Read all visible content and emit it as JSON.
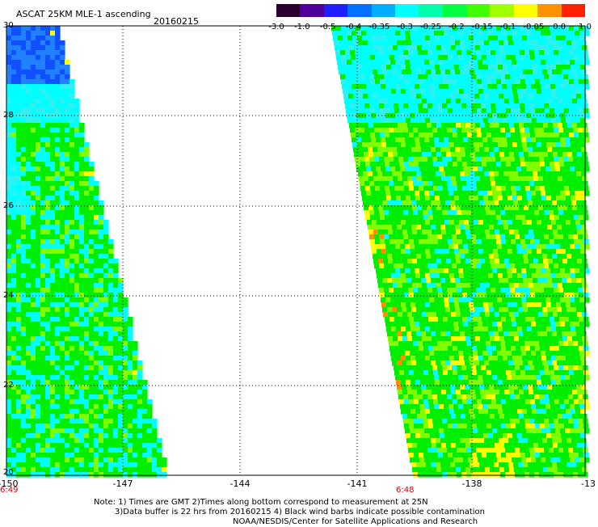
{
  "header": {
    "title": "ASCAT 25KM MLE-1 ascending",
    "date": "20160215"
  },
  "colorbar": {
    "labels": [
      "-3.0",
      "-1.0",
      "-0.5",
      "-0.4",
      "-0.35",
      "-0.3",
      "-0.25",
      "-0.2",
      "-0.15",
      "-0.1",
      "-0.05",
      "0.0",
      "1.0"
    ],
    "colors": [
      "#2a0030",
      "#50009a",
      "#2020ff",
      "#0070ff",
      "#00b0ff",
      "#00ffff",
      "#00ffaa",
      "#00ff40",
      "#40ff00",
      "#a0ff00",
      "#ffff00",
      "#ff9000",
      "#ff2000"
    ]
  },
  "axes": {
    "y_labels": [
      "30",
      "28",
      "26",
      "24",
      "22",
      "20"
    ],
    "x_labels": [
      "-150",
      "-147",
      "-144",
      "-141",
      "-138",
      "-13"
    ],
    "time_left": "6:49",
    "time_right": "6:48"
  },
  "note": {
    "line1": "Note: 1) Times are GMT 2)Times along bottom correspond to measurement at 25N",
    "line2": "3)Data buffer is 22 hrs from 20160215 4) Black wind barbs indicate possible contamination",
    "line3": "NOAA/NESDIS/Center for Satellite Applications and Research"
  },
  "map_colors": {
    "cyan": "#00ffff",
    "light_cyan": "#33f0f0",
    "blue": "#1050ff",
    "green": "#00ee00",
    "yellow_green": "#80ff00",
    "yellow": "#ffff00",
    "orange": "#ff9000"
  }
}
